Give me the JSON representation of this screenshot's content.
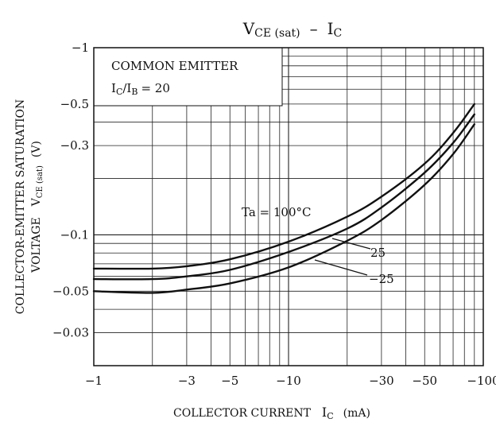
{
  "chart_data": {
    "type": "line",
    "title": {
      "main": "V",
      "main_sub": "CE (sat)",
      "dash": "–",
      "second": "I",
      "second_sub": "C"
    },
    "x_axis": {
      "scale": "log",
      "range": [
        -1,
        -100
      ],
      "ticks": [
        {
          "value": -1,
          "label": "−1"
        },
        {
          "value": -3,
          "label": "−3"
        },
        {
          "value": -5,
          "label": "−5"
        },
        {
          "value": -10,
          "label": "−10"
        },
        {
          "value": -30,
          "label": "−30"
        },
        {
          "value": -50,
          "label": "−50"
        },
        {
          "value": -100,
          "label": "−100"
        }
      ],
      "label": {
        "text": "COLLECTOR CURRENT",
        "sym": "I",
        "sub": "C",
        "unit": "(mA)"
      }
    },
    "y_axis": {
      "scale": "log",
      "range": [
        -0.02,
        -1
      ],
      "ticks": [
        {
          "value": -1,
          "label": "−1"
        },
        {
          "value": -0.5,
          "label": "−0.5"
        },
        {
          "value": -0.3,
          "label": "−0.3"
        },
        {
          "value": -0.1,
          "label": "−0.1"
        },
        {
          "value": -0.05,
          "label": "−0.05"
        },
        {
          "value": -0.03,
          "label": "−0.03"
        }
      ],
      "label_line1": "COLLECTOR-EMITTER SATURATION",
      "label_line2": {
        "text": "VOLTAGE",
        "sym": "V",
        "sub": "CE (sat)",
        "unit": "(V)"
      }
    },
    "grid": true,
    "legend_box": {
      "line1": "COMMON EMITTER",
      "line2": {
        "i1": "I",
        "s1": "C",
        "slash": "/",
        "i2": "I",
        "s2": "B",
        "eq": "= 20"
      }
    },
    "series": [
      {
        "name": "Ta = 100°C",
        "x": [
          -1,
          -2,
          -3,
          -5,
          -10,
          -20,
          -30,
          -50,
          -70,
          -90
        ],
        "y": [
          -0.066,
          -0.066,
          -0.068,
          -0.074,
          -0.092,
          -0.125,
          -0.16,
          -0.24,
          -0.35,
          -0.5
        ]
      },
      {
        "name": "25",
        "x": [
          -1,
          -2,
          -3,
          -5,
          -10,
          -20,
          -30,
          -50,
          -70,
          -90
        ],
        "y": [
          -0.058,
          -0.058,
          -0.06,
          -0.065,
          -0.081,
          -0.108,
          -0.14,
          -0.215,
          -0.31,
          -0.44
        ]
      },
      {
        "name": "−25",
        "x": [
          -1,
          -2,
          -3,
          -5,
          -10,
          -20,
          -30,
          -50,
          -70,
          -90
        ],
        "y": [
          -0.05,
          -0.049,
          -0.051,
          -0.055,
          -0.067,
          -0.093,
          -0.12,
          -0.185,
          -0.27,
          -0.39
        ]
      }
    ],
    "annotations": [
      {
        "series": 0,
        "text": "Ta = 100°C"
      },
      {
        "series": 1,
        "text": "25"
      },
      {
        "series": 2,
        "text": "−25"
      }
    ]
  }
}
